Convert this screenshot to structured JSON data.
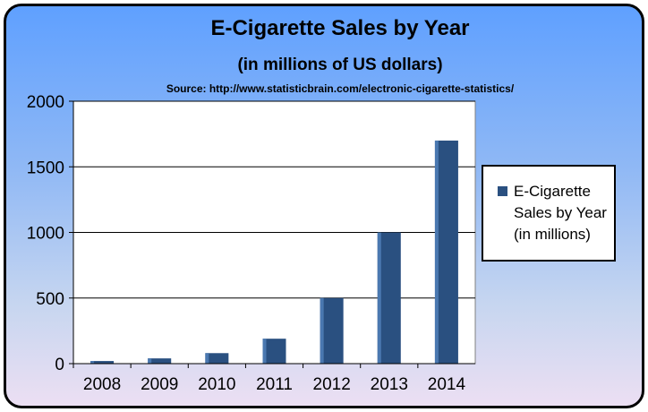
{
  "chart_data": {
    "type": "bar",
    "title": "E-Cigarette Sales by Year",
    "subtitle": "(in millions of US dollars)",
    "source": "Source: http://www.statisticbrain.com/electronic-cigarette-statistics/",
    "categories": [
      "2008",
      "2009",
      "2010",
      "2011",
      "2012",
      "2013",
      "2014"
    ],
    "series": [
      {
        "name": "E-Cigarette Sales by Year (in millions)",
        "values": [
          20,
          40,
          80,
          190,
          500,
          1000,
          1700
        ],
        "color": "#2a5080"
      }
    ],
    "ylim": [
      0,
      2000
    ],
    "yticks": [
      "0",
      "500",
      "1000",
      "1500",
      "2000"
    ],
    "grid": true,
    "legend_position": "right"
  }
}
